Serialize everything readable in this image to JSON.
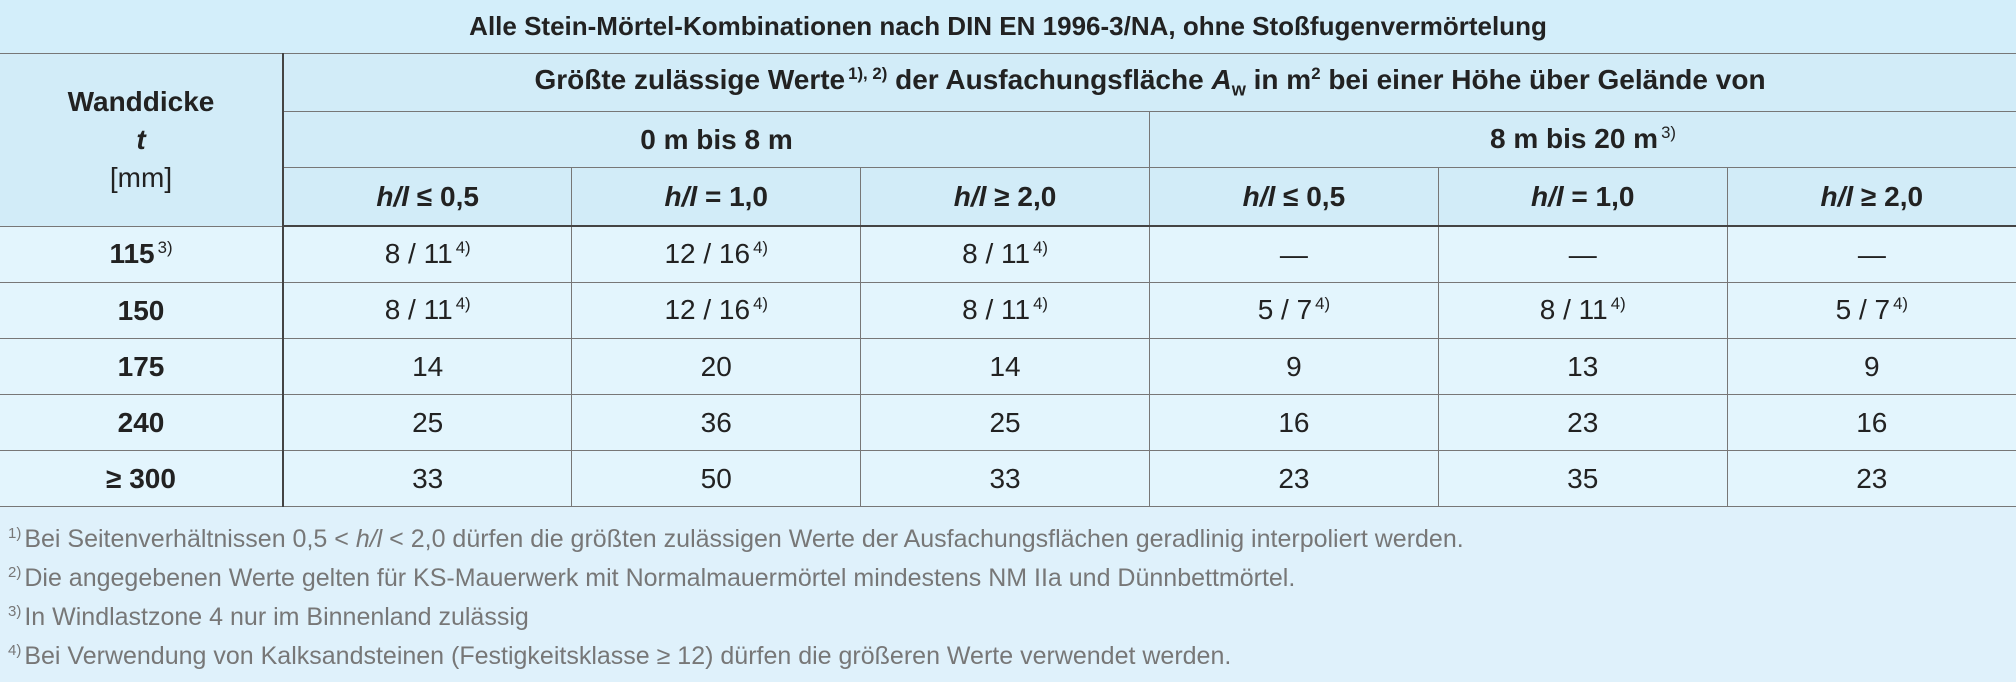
{
  "title": "Alle Stein-Mörtel-Kombinationen nach DIN EN 1996-3/NA, ohne Stoßfugenvermörtelung",
  "header": {
    "col0": [
      "Wanddicke",
      "t",
      "[mm]"
    ],
    "main": [
      "Größte zulässige Werte",
      "1), 2)",
      "der Ausfachungsfläche",
      "A",
      "w",
      "in m",
      "2",
      "bei einer Höhe über Gelände von"
    ],
    "groups": [
      {
        "text": "0 m bis 8 m"
      },
      {
        "text": "8 m bis 20 m",
        "note": "3)"
      }
    ],
    "ratios": [
      {
        "var": "h/l",
        "rel": "≤ 0,5"
      },
      {
        "var": "h/l",
        "rel": "= 1,0"
      },
      {
        "var": "h/l",
        "rel": "≥ 2,0"
      },
      {
        "var": "h/l",
        "rel": "≤ 0,5"
      },
      {
        "var": "h/l",
        "rel": "= 1,0"
      },
      {
        "var": "h/l",
        "rel": "≥ 2,0"
      }
    ]
  },
  "rows": [
    {
      "label": {
        "text": 115,
        "note": "3)"
      },
      "cells": [
        {
          "text": "8 / 11",
          "note": "4)"
        },
        {
          "text": "12 / 16",
          "note": "4)"
        },
        {
          "text": "8 / 11",
          "note": "4)"
        },
        "—",
        "—",
        "—"
      ]
    },
    {
      "label": {
        "text": 150
      },
      "cells": [
        {
          "text": "8 / 11",
          "note": "4)"
        },
        {
          "text": "12 / 16",
          "note": "4)"
        },
        {
          "text": "8 / 11",
          "note": "4)"
        },
        {
          "text": "5 / 7",
          "note": "4)"
        },
        {
          "text": "8 / 11",
          "note": "4)"
        },
        {
          "text": "5 / 7",
          "note": "4)"
        }
      ]
    },
    {
      "label": {
        "text": 175
      },
      "cells": [
        14,
        20,
        14,
        9,
        13,
        9
      ]
    },
    {
      "label": {
        "text": 240
      },
      "cells": [
        25,
        36,
        25,
        16,
        23,
        16
      ]
    },
    {
      "label": {
        "text": "≥ 300"
      },
      "cells": [
        33,
        50,
        33,
        23,
        35,
        23
      ]
    }
  ],
  "footnotes": [
    {
      "mark": "1)",
      "text": [
        "Bei Seitenverhältnissen 0,5 <",
        "h/l",
        "< 2,0 dürfen die größten zulässigen Werte der Ausfachungsflächen geradlinig interpoliert werden."
      ]
    },
    {
      "mark": "2)",
      "text": [
        "Die angegebenen Werte gelten für KS-Mauerwerk mit Normalmauermörtel mindestens NM IIa und Dünnbettmörtel."
      ]
    },
    {
      "mark": "3)",
      "text": [
        "In Windlastzone 4 nur im Binnenland zulässig"
      ]
    },
    {
      "mark": "4)",
      "text": [
        "Bei Verwendung von Kalksandsteinen (Festigkeitsklasse ≥ 12) dürfen die größeren Werte verwendet werden."
      ]
    }
  ]
}
